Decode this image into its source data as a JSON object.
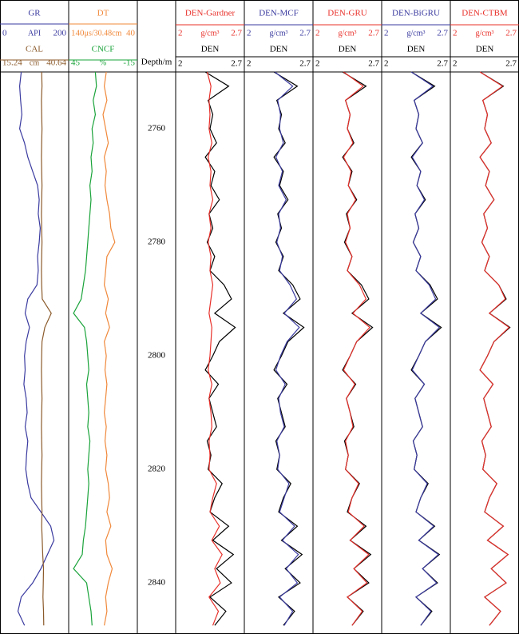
{
  "chart_data": {
    "type": "well-log",
    "depth_label": "Depth/m",
    "ylim": [
      2750,
      2849
    ],
    "yticks": [
      2760,
      2780,
      2800,
      2820,
      2840
    ],
    "depth": [
      2750,
      2752.5,
      2755,
      2757.5,
      2760,
      2762.5,
      2765,
      2767.5,
      2770,
      2772.5,
      2775,
      2777.5,
      2780,
      2782.5,
      2785,
      2787.5,
      2790,
      2792.5,
      2795,
      2797.5,
      2800,
      2802.5,
      2805,
      2807.5,
      2810,
      2812.5,
      2815,
      2817.5,
      2820,
      2822.5,
      2825,
      2827.5,
      2830,
      2832.5,
      2835,
      2837.5,
      2840,
      2842.5,
      2845,
      2847.5
    ],
    "measured": {
      "name": "DEN",
      "color": "#000000",
      "xlim": [
        2,
        2.7
      ],
      "values": [
        2.3,
        2.55,
        2.33,
        2.38,
        2.35,
        2.42,
        2.3,
        2.4,
        2.36,
        2.45,
        2.34,
        2.38,
        2.32,
        2.4,
        2.35,
        2.5,
        2.58,
        2.4,
        2.62,
        2.45,
        2.38,
        2.3,
        2.44,
        2.34,
        2.38,
        2.42,
        2.32,
        2.36,
        2.33,
        2.48,
        2.4,
        2.35,
        2.55,
        2.38,
        2.6,
        2.42,
        2.58,
        2.35,
        2.52,
        2.4
      ]
    },
    "tracks": [
      {
        "type": "log",
        "series": [
          {
            "name": "GR",
            "unit": "API",
            "xlim": [
              0,
              200
            ],
            "color": "#3a3aa0",
            "values": [
              60,
              55,
              58,
              62,
              55,
              70,
              80,
              95,
              110,
              115,
              112,
              118,
              115,
              110,
              112,
              108,
              80,
              72,
              85,
              75,
              70,
              72,
              68,
              75,
              78,
              72,
              80,
              76,
              74,
              80,
              90,
              120,
              150,
              160,
              140,
              120,
              95,
              60,
              50,
              70
            ]
          },
          {
            "name": "CAL",
            "unit": "cm",
            "xlim": [
              15.24,
              40.64
            ],
            "color": "#8b5a2b",
            "values": [
              30.8,
              30.9,
              30.7,
              30.8,
              30.9,
              30.8,
              30.7,
              30.8,
              30.9,
              30.8,
              30.7,
              30.8,
              30.9,
              30.8,
              30.7,
              30.8,
              31.0,
              34.5,
              32.0,
              30.9,
              30.8,
              30.7,
              30.8,
              30.9,
              30.8,
              30.7,
              30.8,
              30.9,
              30.8,
              30.7,
              30.8,
              30.9,
              30.8,
              31.0,
              31.2,
              31.5,
              31.4,
              31.3,
              31.5,
              31.6
            ]
          }
        ]
      },
      {
        "type": "log",
        "series": [
          {
            "name": "DT",
            "unit": "μs/30.48cm",
            "xlim": [
              140,
              40
            ],
            "color": "#f0883a",
            "values": [
              85,
              88,
              84,
              90,
              86,
              82,
              88,
              85,
              87,
              84,
              80,
              78,
              72,
              84,
              86,
              88,
              82,
              86,
              80,
              88,
              85,
              87,
              84,
              86,
              88,
              85,
              87,
              84,
              86,
              82,
              80,
              84,
              78,
              86,
              84,
              76,
              82,
              86,
              84,
              88
            ]
          },
          {
            "name": "CNCF",
            "unit": "%",
            "xlim": [
              45,
              -15
            ],
            "color": "#1aa33a",
            "values": [
              22,
              21,
              24,
              22,
              25,
              24,
              26,
              25,
              27,
              26,
              27,
              28,
              29,
              30,
              31,
              33,
              35,
              42,
              32,
              30,
              29,
              28,
              30,
              29,
              28,
              29,
              27,
              28,
              29,
              28,
              29,
              30,
              31,
              33,
              34,
              42,
              30,
              28,
              26,
              25
            ]
          }
        ]
      },
      {
        "type": "depth"
      },
      {
        "type": "den",
        "series": [
          {
            "name": "DEN-Gardner",
            "unit": "g/cm³",
            "xlim": [
              2,
              2.7
            ],
            "color": "#e8302a",
            "values": [
              2.32,
              2.36,
              2.34,
              2.35,
              2.34,
              2.37,
              2.33,
              2.36,
              2.35,
              2.38,
              2.34,
              2.36,
              2.33,
              2.36,
              2.35,
              2.38,
              2.36,
              2.34,
              2.37,
              2.36,
              2.35,
              2.33,
              2.37,
              2.34,
              2.36,
              2.37,
              2.34,
              2.35,
              2.34,
              2.42,
              2.38,
              2.35,
              2.45,
              2.37,
              2.48,
              2.4,
              2.46,
              2.34,
              2.44,
              2.38
            ]
          }
        ]
      },
      {
        "type": "den",
        "series": [
          {
            "name": "DEN-MCF",
            "unit": "g/cm³",
            "xlim": [
              2,
              2.7
            ],
            "color": "#3a3aa0",
            "values": [
              2.31,
              2.5,
              2.34,
              2.37,
              2.36,
              2.4,
              2.32,
              2.39,
              2.35,
              2.43,
              2.35,
              2.37,
              2.33,
              2.39,
              2.36,
              2.47,
              2.54,
              2.41,
              2.57,
              2.44,
              2.37,
              2.32,
              2.42,
              2.35,
              2.37,
              2.41,
              2.33,
              2.36,
              2.34,
              2.46,
              2.41,
              2.36,
              2.52,
              2.39,
              2.56,
              2.43,
              2.55,
              2.36,
              2.5,
              2.41
            ]
          }
        ]
      },
      {
        "type": "den",
        "series": [
          {
            "name": "DEN-GRU",
            "unit": "g/cm³",
            "xlim": [
              2,
              2.7
            ],
            "color": "#e8302a",
            "values": [
              2.31,
              2.52,
              2.33,
              2.38,
              2.35,
              2.41,
              2.31,
              2.39,
              2.36,
              2.44,
              2.35,
              2.38,
              2.33,
              2.4,
              2.35,
              2.48,
              2.55,
              2.41,
              2.59,
              2.45,
              2.38,
              2.31,
              2.43,
              2.34,
              2.38,
              2.41,
              2.33,
              2.36,
              2.33,
              2.47,
              2.4,
              2.36,
              2.53,
              2.38,
              2.58,
              2.42,
              2.56,
              2.35,
              2.51,
              2.4
            ]
          }
        ]
      },
      {
        "type": "den",
        "series": [
          {
            "name": "DEN-BiGRU",
            "unit": "g/cm³",
            "xlim": [
              2,
              2.7
            ],
            "color": "#3a3aa0",
            "values": [
              2.3,
              2.53,
              2.33,
              2.38,
              2.35,
              2.42,
              2.31,
              2.4,
              2.36,
              2.44,
              2.34,
              2.38,
              2.32,
              2.4,
              2.35,
              2.49,
              2.56,
              2.4,
              2.6,
              2.45,
              2.38,
              2.31,
              2.44,
              2.34,
              2.38,
              2.42,
              2.32,
              2.36,
              2.33,
              2.47,
              2.4,
              2.35,
              2.54,
              2.38,
              2.59,
              2.42,
              2.57,
              2.35,
              2.51,
              2.4
            ]
          }
        ]
      },
      {
        "type": "den",
        "series": [
          {
            "name": "DEN-CTBM",
            "unit": "g/cm³",
            "xlim": [
              2,
              2.7
            ],
            "color": "#e8302a",
            "values": [
              2.3,
              2.54,
              2.33,
              2.38,
              2.35,
              2.42,
              2.3,
              2.4,
              2.36,
              2.45,
              2.34,
              2.38,
              2.32,
              2.4,
              2.35,
              2.5,
              2.57,
              2.4,
              2.61,
              2.45,
              2.38,
              2.3,
              2.44,
              2.34,
              2.38,
              2.42,
              2.32,
              2.36,
              2.33,
              2.48,
              2.4,
              2.35,
              2.55,
              2.38,
              2.6,
              2.42,
              2.58,
              2.35,
              2.52,
              2.4
            ]
          }
        ]
      }
    ]
  }
}
